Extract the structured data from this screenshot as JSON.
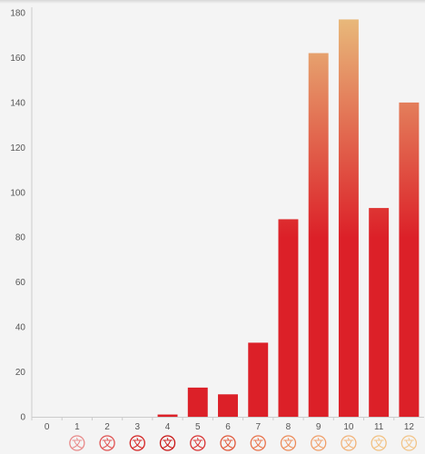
{
  "chart_data": {
    "type": "bar",
    "categories": [
      "0",
      "1",
      "2",
      "3",
      "4",
      "5",
      "6",
      "7",
      "8",
      "9",
      "10",
      "11",
      "12"
    ],
    "values": [
      0,
      0,
      0,
      0,
      1,
      13,
      10,
      33,
      88,
      162,
      177,
      93,
      140
    ],
    "title": "",
    "xlabel": "",
    "ylabel": "",
    "ylim": [
      0,
      180
    ],
    "yticks": [
      0,
      20,
      40,
      60,
      80,
      100,
      120,
      140,
      160,
      180
    ],
    "grid": false,
    "legend": "none",
    "colors": {
      "bar_low": "#dc2028",
      "bar_high": "#e8b87a",
      "axis": "#cccccc",
      "tick_text": "#555555",
      "background": "#f4f4f4"
    },
    "x_icons": {
      "glyph": "文",
      "icon": "stamp-icon",
      "colors": [
        "#f0b8b8",
        "#e88888",
        "#e05050",
        "#d42020",
        "#c81010",
        "#d83030",
        "#e05538",
        "#e87048",
        "#ec8a58",
        "#f09e68",
        "#f2b278",
        "#f2c080",
        "#f2c488"
      ]
    }
  }
}
